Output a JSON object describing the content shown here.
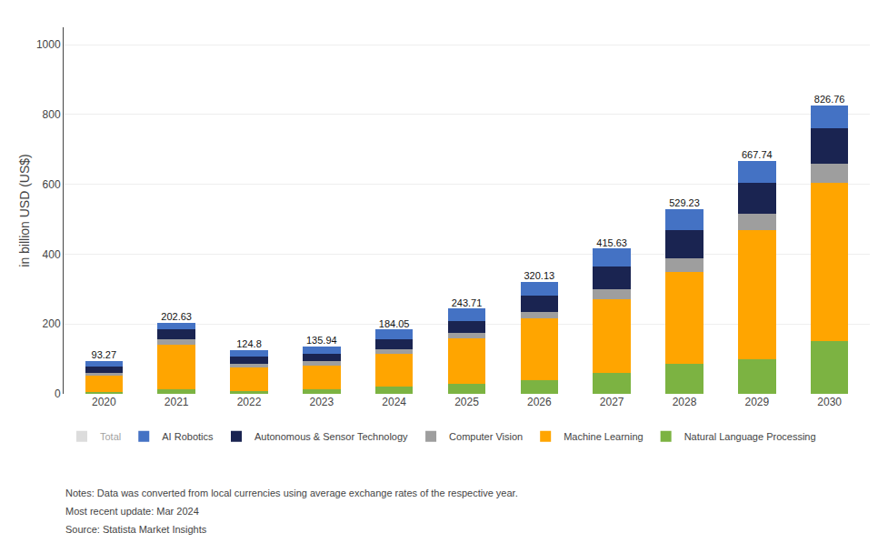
{
  "chart_data": {
    "type": "bar",
    "stacked": true,
    "categories": [
      "2020",
      "2021",
      "2022",
      "2023",
      "2024",
      "2025",
      "2026",
      "2027",
      "2028",
      "2029",
      "2030"
    ],
    "series": [
      {
        "name": "Natural Language Processing",
        "color": "#7CB342",
        "values": [
          5.014516,
          11.978128,
          7.9872,
          13.993824,
          20.005435,
          29.964344,
          40.01625,
          59.946635,
          85.036957,
          99.961078,
          149.956469
        ]
      },
      {
        "name": "Machine Learning",
        "color": "#FFA500",
        "values": [
          48.139355,
          129.763054,
          67.8912,
          67.97,
          95.025815,
          129.845492,
          175.071094,
          209.813221,
          265.115217,
          369.855988,
          454.867956
        ]
      },
      {
        "name": "Computer Vision",
        "color": "#9E9E9E",
        "values": [
          8.023226,
          14.97266,
          9.984,
          11.994706,
          12.003261,
          14.982172,
          20.008125,
          29.973317,
          38.016522,
          44.982485,
          54.984039
        ]
      },
      {
        "name": "Autonomous & Sensor Technology",
        "color": "#1A2451",
        "values": [
          18.052258,
          27.948966,
          21.9648,
          21.990294,
          30.008152,
          34.958402,
          45.018281,
          64.942188,
          80.034783,
          89.96497,
          99.970979
        ]
      },
      {
        "name": "AI Robotics",
        "color": "#4472C4",
        "values": [
          14.040645,
          17.967192,
          16.9728,
          19.991176,
          27.007337,
          33.95959,
          40.01625,
          50.954639,
          61.026522,
          62.975479,
          66.980556
        ]
      },
      {
        "name": "Total",
        "color": "#BBBBBB",
        "type": "text",
        "values": [
          93.27,
          202.63,
          124.8,
          135.94,
          184.05,
          243.71,
          320.13,
          415.63,
          529.23,
          667.74,
          826.76
        ]
      }
    ],
    "ylabel": "in billion USD (US$)",
    "ylim": [
      0,
      1050
    ],
    "yticks": [
      0,
      200,
      400,
      600,
      800,
      1000
    ],
    "grid": true,
    "legend": "bottom",
    "annotations": [
      "Notes: Data was converted from local currencies using average exchange rates of the respective year.",
      "Most recent update: Mar 2024",
      "Source: Statista Market Insights"
    ]
  }
}
